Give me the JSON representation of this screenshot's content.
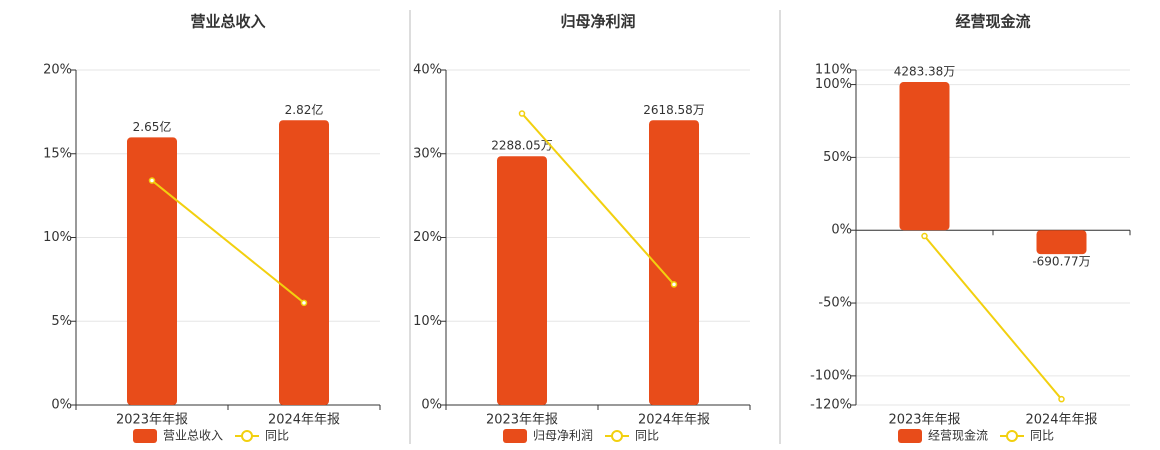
{
  "chart_data": [
    {
      "type": "bar-line",
      "title": "营业总收入",
      "categories": [
        "2023年年报",
        "2024年年报"
      ],
      "series": [
        {
          "name": "营业总收入",
          "color": "#e84c1a",
          "values": [
            2.65,
            2.82
          ],
          "value_labels": [
            "2.65亿",
            "2.82亿"
          ]
        },
        {
          "name": "同比",
          "color": "#f2d00f",
          "values": [
            13.4,
            6.1
          ]
        }
      ],
      "ylim": [
        0,
        20
      ],
      "yticks": [
        {
          "value": 0,
          "label": "0%"
        },
        {
          "value": 5,
          "label": "5%"
        },
        {
          "value": 10,
          "label": "10%"
        },
        {
          "value": 15,
          "label": "15%"
        },
        {
          "value": 20,
          "label": "20%"
        }
      ]
    },
    {
      "type": "bar-line",
      "title": "归母净利润",
      "categories": [
        "2023年年报",
        "2024年年报"
      ],
      "series": [
        {
          "name": "归母净利润",
          "color": "#e84c1a",
          "values": [
            2288.05,
            2618.58
          ],
          "value_labels": [
            "2288.05万",
            "2618.58万"
          ]
        },
        {
          "name": "同比",
          "color": "#f2d00f",
          "values": [
            34.8,
            14.4
          ]
        }
      ],
      "ylim": [
        0,
        40
      ],
      "yticks": [
        {
          "value": 0,
          "label": "0%"
        },
        {
          "value": 10,
          "label": "10%"
        },
        {
          "value": 20,
          "label": "20%"
        },
        {
          "value": 30,
          "label": "30%"
        },
        {
          "value": 40,
          "label": "40%"
        }
      ]
    },
    {
      "type": "bar-line",
      "title": "经营现金流",
      "categories": [
        "2023年年报",
        "2024年年报"
      ],
      "series": [
        {
          "name": "经营现金流",
          "color": "#e84c1a",
          "values": [
            4283.38,
            -690.77
          ],
          "value_labels": [
            "4283.38万",
            "-690.77万"
          ]
        },
        {
          "name": "同比",
          "color": "#f2d00f",
          "values": [
            -4,
            -116
          ]
        }
      ],
      "ylim": [
        -120,
        110
      ],
      "yticks": [
        {
          "value": -120,
          "label": "-120%"
        },
        {
          "value": -100,
          "label": "-100%"
        },
        {
          "value": -50,
          "label": "-50%"
        },
        {
          "value": 0,
          "label": "0%"
        },
        {
          "value": 50,
          "label": "50%"
        },
        {
          "value": 100,
          "label": "100%"
        },
        {
          "value": 110,
          "label": "110%"
        }
      ]
    }
  ]
}
